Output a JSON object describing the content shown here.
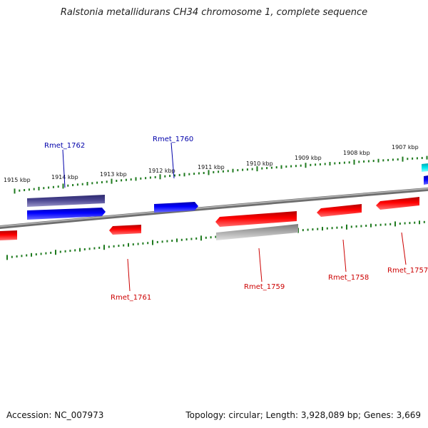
{
  "title": "Ralstonia metallidurans CH34 chromosome 1, complete sequence",
  "footer": {
    "accession": "Accession: NC_007973",
    "info": "Topology: circular; Length: 3,928,089 bp; Genes: 3,669"
  },
  "kbp_labels": [
    "1915 kbp",
    "1914 kbp",
    "1913 kbp",
    "1912 kbp",
    "1911 kbp",
    "1910 kbp",
    "1909 kbp",
    "1908 kbp",
    "1907 kbp"
  ],
  "gene_labels": [
    {
      "name": "Rmet_1762",
      "strand": "forward"
    },
    {
      "name": "Rmet_1760",
      "strand": "forward"
    },
    {
      "name": "Rmet_1761",
      "strand": "reverse"
    },
    {
      "name": "Rmet_1759",
      "strand": "reverse"
    },
    {
      "name": "Rmet_1758",
      "strand": "reverse"
    },
    {
      "name": "Rmet_1757",
      "strand": "reverse"
    }
  ],
  "colors": {
    "forward_cds": "#0000ee",
    "reverse_cds": "#ee0000",
    "forward_label": "#0000aa",
    "reverse_label": "#cc0000",
    "backbone": "#808080",
    "tick": "#1e7a1e",
    "forward_other": "#4a4590",
    "reverse_other": "#a8a8a8",
    "cyan_feature": "#00d8e0"
  }
}
